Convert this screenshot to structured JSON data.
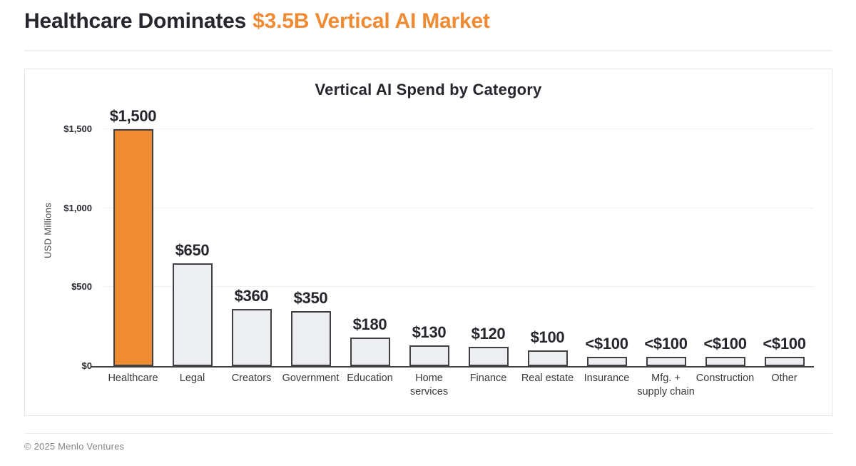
{
  "page": {
    "headline_dark": "Healthcare Dominates",
    "headline_accent": "$3.5B Vertical AI Market",
    "footer": "© 2025 Menlo Ventures"
  },
  "colors": {
    "accent_orange": "#F08B33",
    "bar_gray_fill": "#EDEEF0",
    "bar_border": "#3F3F44",
    "text_dark": "#26262C",
    "gridline": "#F1F1F3"
  },
  "chart_data": {
    "type": "bar",
    "title": "Vertical AI Spend by Category",
    "xlabel": "",
    "ylabel": "USD Millions",
    "ylim": [
      0,
      1500
    ],
    "grid": "horizontal-faint",
    "legend": "none",
    "highlight_index": 0,
    "yticks": [
      {
        "value": 0,
        "label": "$0"
      },
      {
        "value": 500,
        "label": "$500"
      },
      {
        "value": 1000,
        "label": "$1,000"
      },
      {
        "value": 1500,
        "label": "$1,500"
      }
    ],
    "categories": [
      "Healthcare",
      "Legal",
      "Creators",
      "Government",
      "Education",
      "Home\nservices",
      "Finance",
      "Real estate",
      "Insurance",
      "Mfg. +\nsupply chain",
      "Construction",
      "Other"
    ],
    "values": [
      1500,
      650,
      360,
      350,
      180,
      130,
      120,
      100,
      60,
      60,
      60,
      60
    ],
    "value_labels": [
      "$1,500",
      "$650",
      "$360",
      "$350",
      "$180",
      "$130",
      "$120",
      "$100",
      "<$100",
      "<$100",
      "<$100",
      "<$100"
    ]
  }
}
